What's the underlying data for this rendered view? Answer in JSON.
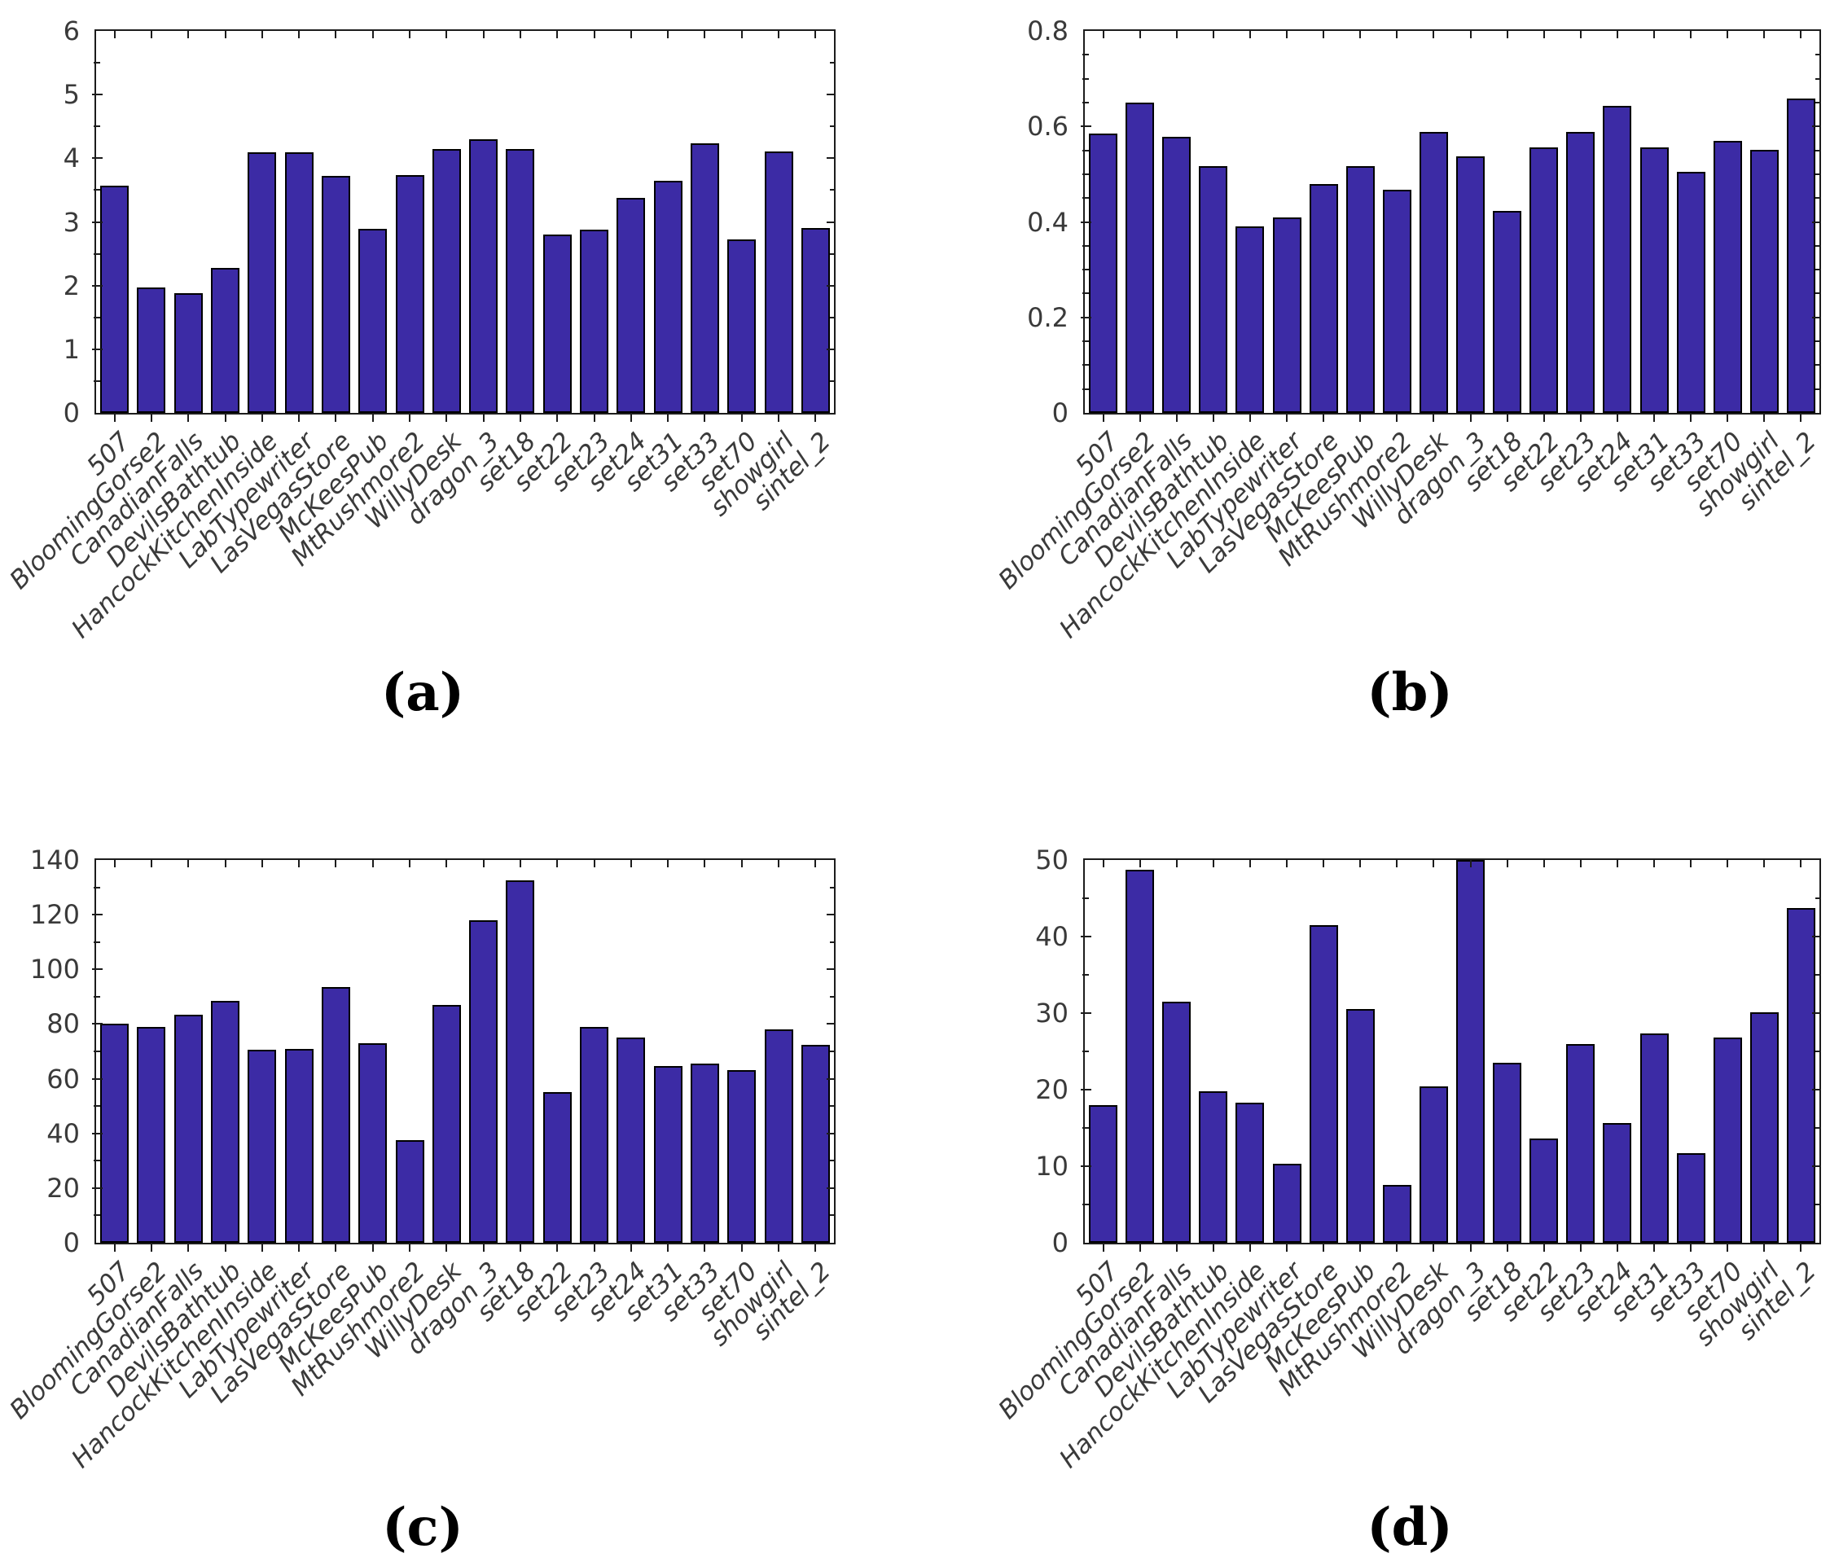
{
  "figure": {
    "background": "#ffffff",
    "bar_color": "#3C2BA5",
    "bar_edge_color": "#000000",
    "axis_color": "#1c1c1c",
    "label_color": "#3a3a3a",
    "panel_labels": [
      "(a)",
      "(b)",
      "(c)",
      "(d)"
    ]
  },
  "chart_data": [
    {
      "type": "bar",
      "caption": "(a)",
      "title": "",
      "xlabel": "",
      "ylabel": "",
      "ylim": [
        0,
        6
      ],
      "yticks": [
        0,
        1,
        2,
        3,
        4,
        5,
        6
      ],
      "ytick_labels": [
        "0",
        "1",
        "2",
        "3",
        "4",
        "5",
        "6"
      ],
      "yminor_step": 0.5,
      "grid": false,
      "legend": null,
      "bar_color": "#3C2BA5",
      "categories": [
        "507",
        "BloomingGorse2",
        "CanadianFalls",
        "DevilsBathtub",
        "HancockKitchenInside",
        "LabTypewriter",
        "LasVegasStore",
        "McKeesPub",
        "MtRushmore2",
        "WillyDesk",
        "dragon_3",
        "set18",
        "set22",
        "set23",
        "set24",
        "set31",
        "set33",
        "set70",
        "showgirl",
        "sintel_2"
      ],
      "values": [
        3.57,
        1.97,
        1.88,
        2.28,
        4.1,
        4.1,
        3.72,
        2.89,
        3.74,
        4.15,
        4.3,
        4.15,
        2.8,
        2.88,
        3.38,
        3.64,
        4.23,
        2.73,
        4.11,
        2.91
      ]
    },
    {
      "type": "bar",
      "caption": "(b)",
      "title": "",
      "xlabel": "",
      "ylabel": "",
      "ylim": [
        0,
        0.8
      ],
      "yticks": [
        0,
        0.2,
        0.4,
        0.6,
        0.8
      ],
      "ytick_labels": [
        "0",
        "0.2",
        "0.4",
        "0.6",
        "0.8"
      ],
      "yminor_step": 0.05,
      "grid": false,
      "legend": null,
      "bar_color": "#3C2BA5",
      "categories": [
        "507",
        "BloomingGorse2",
        "CanadianFalls",
        "DevilsBathtub",
        "HancockKitchenInside",
        "LabTypewriter",
        "LasVegasStore",
        "McKeesPub",
        "MtRushmore2",
        "WillyDesk",
        "dragon_3",
        "set18",
        "set22",
        "set23",
        "set24",
        "set31",
        "set33",
        "set70",
        "showgirl",
        "sintel_2"
      ],
      "values": [
        0.585,
        0.65,
        0.578,
        0.517,
        0.39,
        0.41,
        0.48,
        0.517,
        0.467,
        0.588,
        0.537,
        0.423,
        0.556,
        0.588,
        0.643,
        0.556,
        0.505,
        0.569,
        0.551,
        0.659
      ]
    },
    {
      "type": "bar",
      "caption": "(c)",
      "title": "",
      "xlabel": "",
      "ylabel": "",
      "ylim": [
        0,
        140
      ],
      "yticks": [
        0,
        20,
        40,
        60,
        80,
        100,
        120,
        140
      ],
      "ytick_labels": [
        "0",
        "20",
        "40",
        "60",
        "80",
        "100",
        "120",
        "140"
      ],
      "yminor_step": 10,
      "grid": false,
      "legend": null,
      "bar_color": "#3C2BA5",
      "categories": [
        "507",
        "BloomingGorse2",
        "CanadianFalls",
        "DevilsBathtub",
        "HancockKitchenInside",
        "LabTypewriter",
        "LasVegasStore",
        "McKeesPub",
        "MtRushmore2",
        "WillyDesk",
        "dragon_3",
        "set18",
        "set22",
        "set23",
        "set24",
        "set31",
        "set33",
        "set70",
        "showgirl",
        "sintel_2"
      ],
      "values": [
        80,
        79,
        83.5,
        88.5,
        70.5,
        71,
        93.5,
        73,
        37.5,
        87,
        118,
        132.5,
        55,
        79,
        75,
        64.5,
        65.5,
        63,
        78,
        72.5
      ]
    },
    {
      "type": "bar",
      "caption": "(d)",
      "title": "",
      "xlabel": "",
      "ylabel": "",
      "ylim": [
        0,
        50
      ],
      "yticks": [
        0,
        10,
        20,
        30,
        40,
        50
      ],
      "ytick_labels": [
        "0",
        "10",
        "20",
        "30",
        "40",
        "50"
      ],
      "yminor_step": 5,
      "grid": false,
      "legend": null,
      "bar_color": "#3C2BA5",
      "categories": [
        "507",
        "BloomingGorse2",
        "CanadianFalls",
        "DevilsBathtub",
        "HancockKitchenInside",
        "LabTypewriter",
        "LasVegasStore",
        "McKeesPub",
        "MtRushmore2",
        "WillyDesk",
        "dragon_3",
        "set18",
        "set22",
        "set23",
        "set24",
        "set31",
        "set33",
        "set70",
        "showgirl",
        "sintel_2"
      ],
      "values": [
        18,
        48.7,
        31.5,
        19.8,
        18.3,
        10.3,
        41.5,
        30.5,
        7.6,
        20.4,
        50,
        23.5,
        13.6,
        26,
        15.6,
        27.3,
        11.7,
        26.8,
        30.1,
        43.7
      ]
    }
  ]
}
